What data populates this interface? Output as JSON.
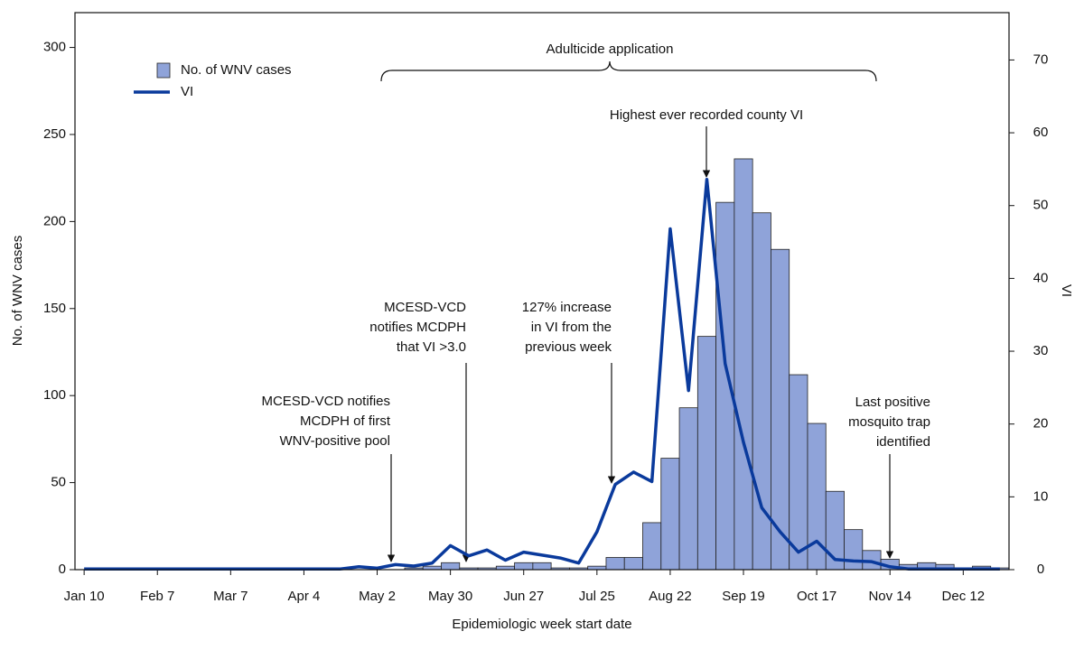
{
  "chart_data": {
    "type": "bar",
    "x_label": "Epidemiologic week start date",
    "y_label": "No. of WNV cases",
    "y2_label": "VI",
    "categories": [
      "Jan 10",
      null,
      null,
      null,
      "Feb 7",
      null,
      null,
      null,
      "Mar 7",
      null,
      null,
      null,
      "Apr 4",
      null,
      null,
      null,
      "May 2",
      null,
      null,
      null,
      "May 30",
      null,
      null,
      null,
      "Jun 27",
      null,
      null,
      null,
      "Jul 25",
      null,
      null,
      null,
      "Aug 22",
      null,
      null,
      null,
      "Sep 19",
      null,
      null,
      null,
      "Oct 17",
      null,
      null,
      null,
      "Nov 14",
      null,
      null,
      null,
      "Dec 12",
      null,
      null
    ],
    "series": [
      {
        "name": "No. of WNV cases",
        "type": "bar",
        "color": "#8fa3d9",
        "values": [
          0,
          0,
          0,
          0,
          0,
          0,
          1,
          0,
          0,
          0,
          0,
          0,
          0,
          0,
          0,
          0,
          0,
          0,
          1,
          2,
          4,
          1,
          1,
          2,
          4,
          4,
          1,
          1,
          2,
          7,
          7,
          27,
          64,
          93,
          134,
          211,
          236,
          205,
          184,
          112,
          84,
          45,
          23,
          11,
          6,
          3,
          4,
          3,
          1,
          2,
          1
        ]
      },
      {
        "name": "VI",
        "type": "line",
        "axis": "y2",
        "color": "#0a3a9c",
        "values": [
          0.1,
          0.1,
          0.1,
          0.1,
          0.1,
          0.1,
          0.1,
          0.1,
          0.1,
          0.1,
          0.1,
          0.1,
          0.1,
          0.1,
          0.1,
          0.4,
          0.2,
          0.7,
          0.5,
          0.9,
          3.3,
          1.9,
          2.7,
          1.3,
          2.4,
          2.0,
          1.6,
          0.9,
          5.2,
          11.7,
          13.4,
          12.1,
          46.8,
          24.6,
          53.6,
          28.3,
          17.5,
          8.5,
          5.2,
          2.4,
          3.9,
          1.4,
          1.2,
          1.1,
          0.4,
          0.1,
          0.1,
          0.1,
          0.1,
          0.1,
          0.1
        ]
      }
    ],
    "ylim": [
      0,
      320
    ],
    "yticks": [
      0,
      50,
      100,
      150,
      200,
      250,
      300
    ],
    "y2lim": [
      0,
      76.5
    ],
    "y2ticks": [
      0,
      10,
      20,
      30,
      40,
      50,
      60,
      70
    ],
    "legend": "upper left",
    "annotations": [
      {
        "lines": [
          "Adulticide application"
        ]
      },
      {
        "lines": [
          "Highest ever recorded county VI"
        ]
      },
      {
        "lines": [
          "MCESD-VCD notifies",
          "MCDPH of first",
          "WNV-positive pool"
        ]
      },
      {
        "lines": [
          "MCESD-VCD",
          "notifies MCDPH",
          "that VI >3.0"
        ]
      },
      {
        "lines": [
          "127% increase",
          "in VI from the",
          "previous week"
        ]
      },
      {
        "lines": [
          "Last positive",
          "mosquito trap",
          "identified"
        ]
      }
    ]
  }
}
